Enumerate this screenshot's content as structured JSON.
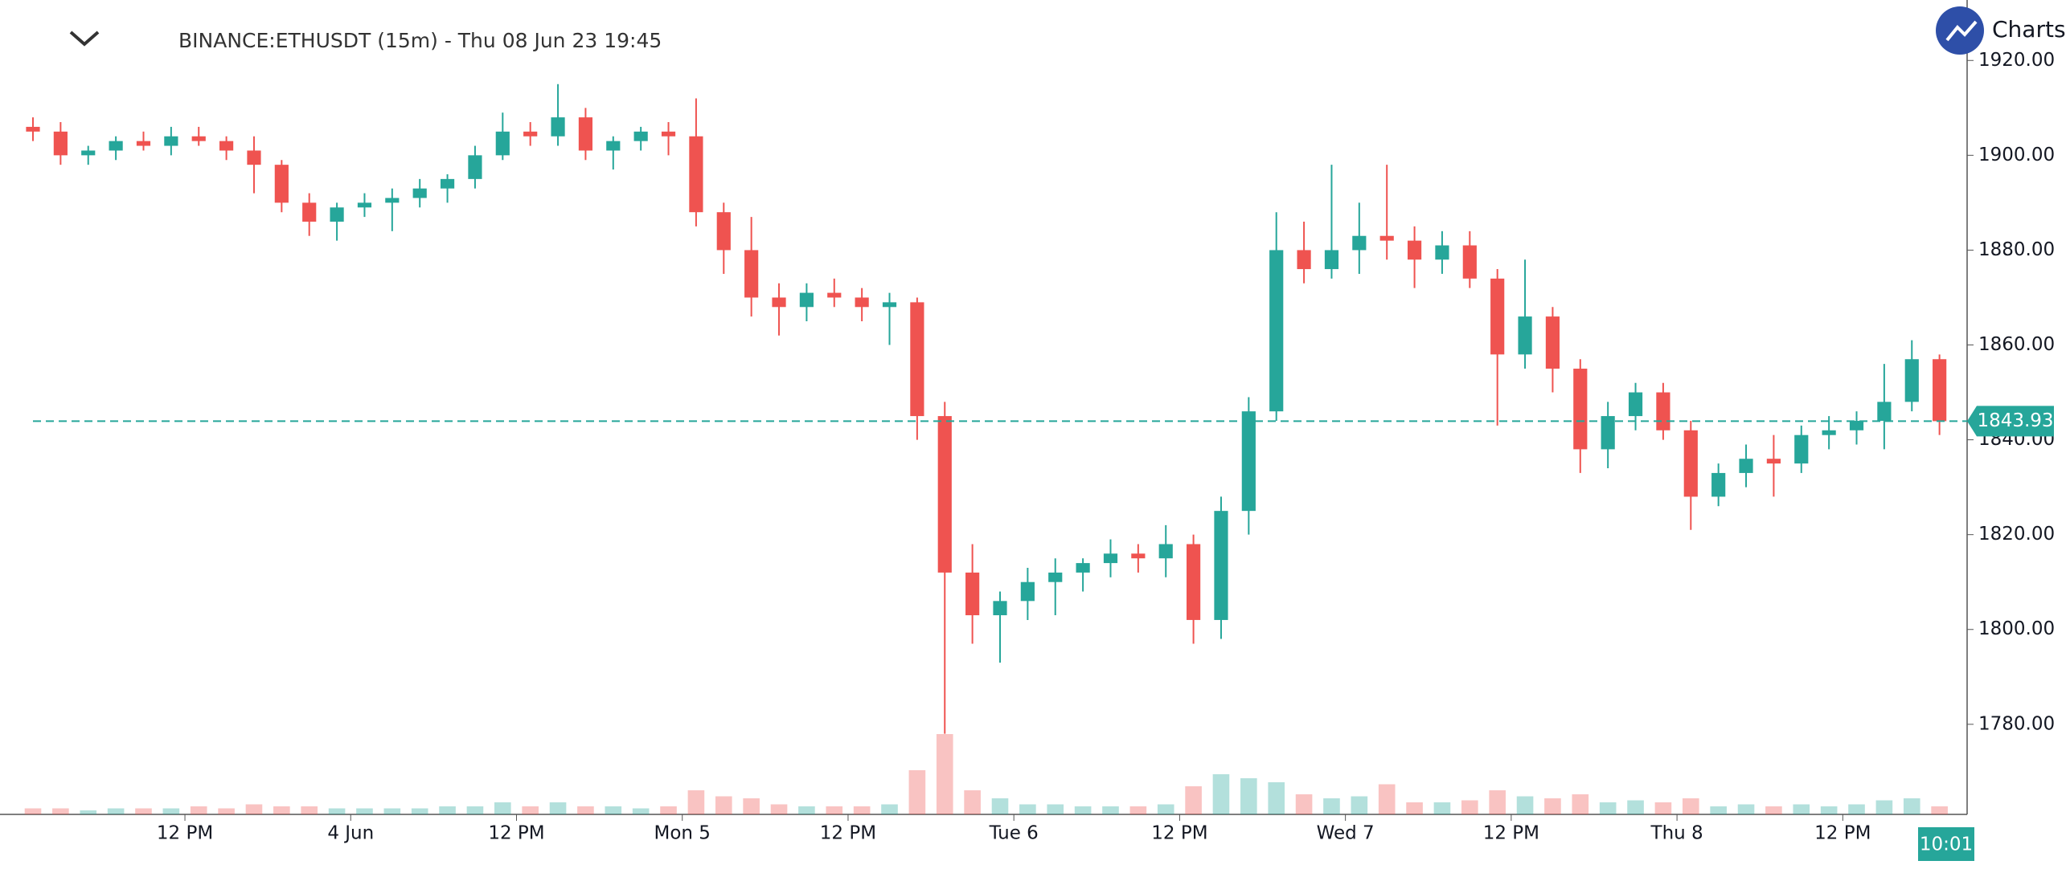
{
  "chart_data": {
    "type": "candlestick",
    "title": "BINANCE:ETHUSDT (15m) - Thu 08 Jun 23 19:45",
    "brand": "Charts",
    "countdown": "10:01",
    "up_color": "#26a69a",
    "down_color": "#ef5350",
    "xlim": [
      1,
      141
    ],
    "xticks": [
      {
        "value": 12,
        "label": "12 PM"
      },
      {
        "value": 24,
        "label": "4 Jun"
      },
      {
        "value": 36,
        "label": "12 PM"
      },
      {
        "value": 48,
        "label": "Mon 5"
      },
      {
        "value": 60,
        "label": "12 PM"
      },
      {
        "value": 72,
        "label": "Tue 6"
      },
      {
        "value": 84,
        "label": "12 PM"
      },
      {
        "value": 96,
        "label": "Wed 7"
      },
      {
        "value": 108,
        "label": "12 PM"
      },
      {
        "value": 120,
        "label": "Thu 8"
      },
      {
        "value": 132,
        "label": "12 PM"
      }
    ],
    "ylim": [
      1761,
      1932.75
    ],
    "yticks": [
      {
        "value": 1780,
        "label": "1780.00"
      },
      {
        "value": 1800,
        "label": "1800.00"
      },
      {
        "value": 1820,
        "label": "1820.00"
      },
      {
        "value": 1840,
        "label": "1840.00"
      },
      {
        "value": 1860,
        "label": "1860.00"
      },
      {
        "value": 1880,
        "label": "1880.00"
      },
      {
        "value": 1900,
        "label": "1900.00"
      },
      {
        "value": 1920,
        "label": "1920.00"
      }
    ],
    "price_line": 1843.93,
    "x": [
      1,
      3,
      5,
      7,
      9,
      11,
      13,
      15,
      17,
      19,
      21,
      23,
      25,
      27,
      29,
      31,
      33,
      35,
      37,
      39,
      41,
      43,
      45,
      47,
      49,
      51,
      53,
      55,
      57,
      59,
      61,
      63,
      65,
      67,
      69,
      71,
      73,
      75,
      77,
      79,
      81,
      83,
      85,
      87,
      89,
      91,
      93,
      95,
      97,
      99,
      101,
      103,
      105,
      107,
      109,
      111,
      113,
      115,
      117,
      119,
      121,
      123,
      125,
      127,
      129,
      131,
      133,
      135,
      137,
      139
    ],
    "open": [
      1906,
      1905,
      1900,
      1901,
      1903,
      1902,
      1904,
      1903,
      1901,
      1898,
      1890,
      1886,
      1889,
      1890,
      1891,
      1893,
      1895,
      1900,
      1905,
      1904,
      1908,
      1901,
      1903,
      1905,
      1904,
      1888,
      1880,
      1870,
      1868,
      1871,
      1870,
      1868,
      1869,
      1845,
      1812,
      1803,
      1806,
      1810,
      1812,
      1814,
      1816,
      1815,
      1818,
      1802,
      1825,
      1846,
      1880,
      1876,
      1880,
      1883,
      1882,
      1878,
      1881,
      1874,
      1858,
      1866,
      1855,
      1838,
      1845,
      1850,
      1842,
      1828,
      1833,
      1836,
      1835,
      1841,
      1842,
      1844,
      1848,
      1857
    ],
    "high": [
      1908,
      1907,
      1902,
      1904,
      1905,
      1906,
      1906,
      1904,
      1904,
      1899,
      1892,
      1890,
      1892,
      1893,
      1895,
      1896,
      1902,
      1909,
      1907,
      1915,
      1910,
      1904,
      1906,
      1907,
      1912,
      1890,
      1887,
      1873,
      1873,
      1874,
      1872,
      1871,
      1870,
      1848,
      1818,
      1808,
      1813,
      1815,
      1815,
      1819,
      1818,
      1822,
      1820,
      1828,
      1849,
      1888,
      1886,
      1898,
      1890,
      1898,
      1885,
      1884,
      1884,
      1876,
      1878,
      1868,
      1857,
      1848,
      1852,
      1852,
      1844,
      1835,
      1839,
      1841,
      1843,
      1845,
      1846,
      1856,
      1861,
      1858
    ],
    "low": [
      1903,
      1898,
      1898,
      1899,
      1901,
      1900,
      1902,
      1899,
      1892,
      1888,
      1883,
      1882,
      1887,
      1884,
      1889,
      1890,
      1893,
      1899,
      1902,
      1902,
      1899,
      1897,
      1901,
      1900,
      1885,
      1875,
      1866,
      1862,
      1865,
      1868,
      1865,
      1860,
      1840,
      1778,
      1797,
      1793,
      1802,
      1803,
      1808,
      1811,
      1812,
      1811,
      1797,
      1798,
      1820,
      1844,
      1873,
      1874,
      1875,
      1878,
      1872,
      1875,
      1872,
      1843,
      1855,
      1850,
      1833,
      1834,
      1842,
      1840,
      1821,
      1826,
      1830,
      1828,
      1833,
      1838,
      1839,
      1838,
      1846,
      1841
    ],
    "close": [
      1905,
      1900,
      1901,
      1903,
      1902,
      1904,
      1903,
      1901,
      1898,
      1890,
      1886,
      1889,
      1890,
      1891,
      1893,
      1895,
      1900,
      1905,
      1904,
      1908,
      1901,
      1903,
      1905,
      1904,
      1888,
      1880,
      1870,
      1868,
      1871,
      1870,
      1868,
      1869,
      1845,
      1812,
      1803,
      1806,
      1810,
      1812,
      1814,
      1816,
      1815,
      1818,
      1802,
      1825,
      1846,
      1880,
      1876,
      1880,
      1883,
      1882,
      1878,
      1881,
      1874,
      1858,
      1866,
      1855,
      1838,
      1845,
      1850,
      1842,
      1828,
      1833,
      1836,
      1835,
      1841,
      1842,
      1844,
      1848,
      1857,
      1843.93
    ],
    "volume": [
      3,
      3,
      2,
      3,
      3,
      3,
      4,
      3,
      5,
      4,
      4,
      3,
      3,
      3,
      3,
      4,
      4,
      6,
      4,
      6,
      4,
      4,
      3,
      4,
      12,
      9,
      8,
      5,
      4,
      4,
      4,
      5,
      22,
      40,
      12,
      8,
      5,
      5,
      4,
      4,
      4,
      5,
      14,
      20,
      18,
      16,
      10,
      8,
      9,
      15,
      6,
      6,
      7,
      12,
      9,
      8,
      10,
      6,
      7,
      6,
      8,
      4,
      5,
      4,
      5,
      4,
      5,
      7,
      8,
      4
    ]
  }
}
